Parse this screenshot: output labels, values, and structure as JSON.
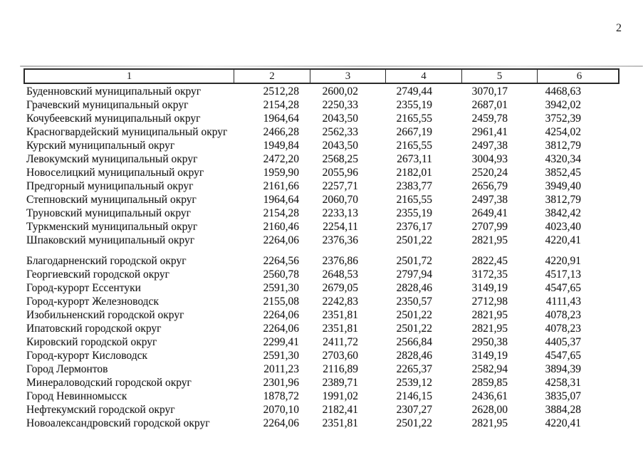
{
  "page": {
    "number": "2"
  },
  "table": {
    "headers": [
      "1",
      "2",
      "3",
      "4",
      "5",
      "6"
    ],
    "groups": [
      {
        "rows": [
          {
            "name": "Буденновский муниципальный округ",
            "values": [
              "2512,28",
              "2600,02",
              "2749,44",
              "3070,17",
              "4468,63"
            ]
          },
          {
            "name": "Грачевский муниципальный округ",
            "values": [
              "2154,28",
              "2250,33",
              "2355,19",
              "2687,01",
              "3942,02"
            ]
          },
          {
            "name": "Кочубеевский муниципальный округ",
            "values": [
              "1964,64",
              "2043,50",
              "2165,55",
              "2459,78",
              "3752,39"
            ]
          },
          {
            "name": "Красногвардейский муниципальный округ",
            "values": [
              "2466,28",
              "2562,33",
              "2667,19",
              "2961,41",
              "4254,02"
            ]
          },
          {
            "name": "Курский муниципальный округ",
            "values": [
              "1949,84",
              "2043,50",
              "2165,55",
              "2497,38",
              "3812,79"
            ]
          },
          {
            "name": "Левокумский муниципальный округ",
            "values": [
              "2472,20",
              "2568,25",
              "2673,11",
              "3004,93",
              "4320,34"
            ]
          },
          {
            "name": "Новоселицкий муниципальный округ",
            "values": [
              "1959,90",
              "2055,96",
              "2182,01",
              "2520,24",
              "3852,45"
            ]
          },
          {
            "name": "Предгорный муниципальный округ",
            "values": [
              "2161,66",
              "2257,71",
              "2383,77",
              "2656,79",
              "3949,40"
            ]
          },
          {
            "name": "Степновский муниципальный округ",
            "values": [
              "1964,64",
              "2060,70",
              "2165,55",
              "2497,38",
              "3812,79"
            ]
          },
          {
            "name": "Труновский муниципальный округ",
            "values": [
              "2154,28",
              "2233,13",
              "2355,19",
              "2649,41",
              "3842,42"
            ]
          },
          {
            "name": "Туркменский муниципальный округ",
            "values": [
              "2160,46",
              "2254,11",
              "2376,17",
              "2707,99",
              "4023,40"
            ]
          },
          {
            "name": "Шпаковский муниципальный округ",
            "values": [
              "2264,06",
              "2376,36",
              "2501,22",
              "2821,95",
              "4220,41"
            ]
          }
        ]
      },
      {
        "rows": [
          {
            "name": "Благодарненский городской округ",
            "values": [
              "2264,56",
              "2376,86",
              "2501,72",
              "2822,45",
              "4220,91"
            ]
          },
          {
            "name": "Георгиевский городской округ",
            "values": [
              "2560,78",
              "2648,53",
              "2797,94",
              "3172,35",
              "4517,13"
            ]
          },
          {
            "name": "Город-курорт Ессентуки",
            "values": [
              "2591,30",
              "2679,05",
              "2828,46",
              "3149,19",
              "4547,65"
            ]
          },
          {
            "name": "Город-курорт Железноводск",
            "values": [
              "2155,08",
              "2242,83",
              "2350,57",
              "2712,98",
              "4111,43"
            ]
          },
          {
            "name": "Изобильненский городской округ",
            "values": [
              "2264,06",
              "2351,81",
              "2501,22",
              "2821,95",
              "4078,23"
            ]
          },
          {
            "name": "Ипатовский городской округ",
            "values": [
              "2264,06",
              "2351,81",
              "2501,22",
              "2821,95",
              "4078,23"
            ]
          },
          {
            "name": "Кировский городской округ",
            "values": [
              "2299,41",
              "2411,72",
              "2566,84",
              "2950,38",
              "4405,37"
            ]
          },
          {
            "name": "Город-курорт Кисловодск",
            "values": [
              "2591,30",
              "2703,60",
              "2828,46",
              "3149,19",
              "4547,65"
            ]
          },
          {
            "name": "Город Лермонтов",
            "values": [
              "2011,23",
              "2116,89",
              "2265,37",
              "2582,94",
              "3894,39"
            ]
          },
          {
            "name": "Минераловодский городской округ",
            "values": [
              "2301,96",
              "2389,71",
              "2539,12",
              "2859,85",
              "4258,31"
            ]
          },
          {
            "name": "Город Невинномысск",
            "values": [
              "1878,72",
              "1991,02",
              "2146,15",
              "2436,61",
              "3835,07"
            ]
          },
          {
            "name": "Нефтекумский городской округ",
            "values": [
              "2070,10",
              "2182,41",
              "2307,27",
              "2628,00",
              "3884,28"
            ]
          },
          {
            "name": "Новоалександровский городской округ",
            "values": [
              "2264,06",
              "2351,81",
              "2501,22",
              "2821,95",
              "4220,41"
            ]
          }
        ]
      }
    ]
  }
}
